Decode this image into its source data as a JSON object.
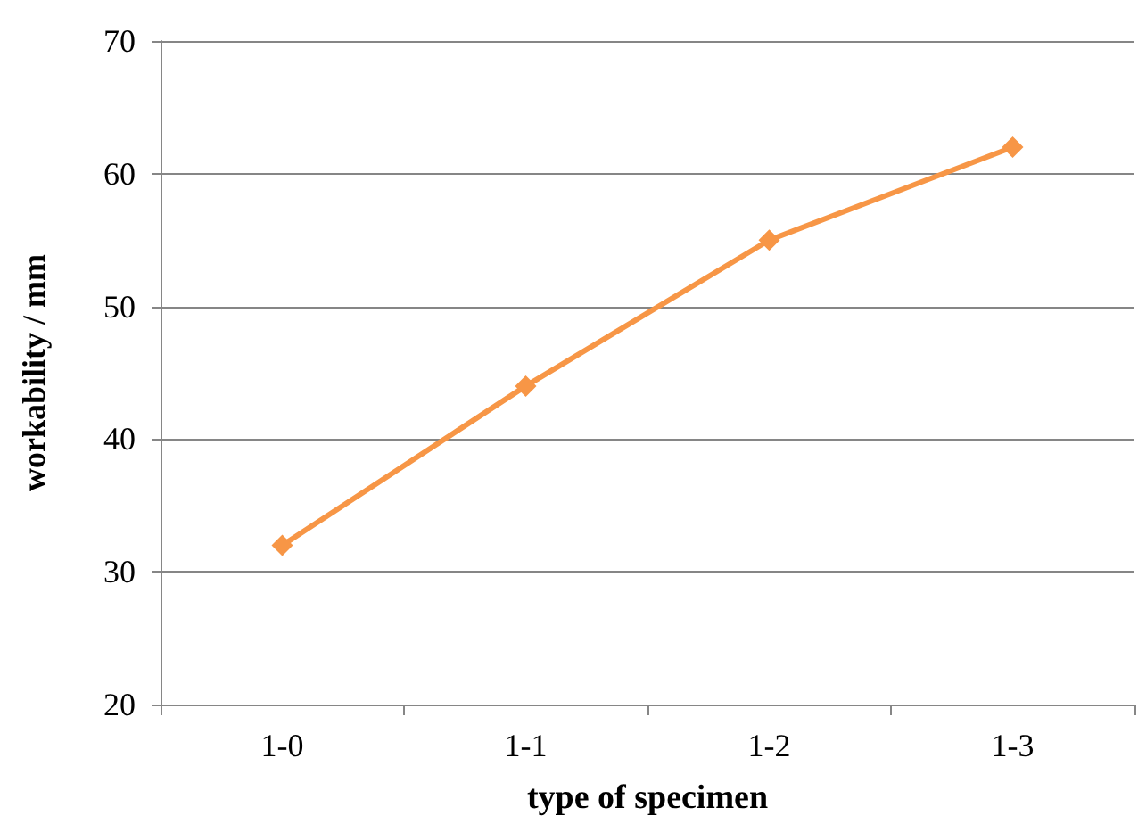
{
  "chart_data": {
    "type": "line",
    "xlabel": "type of specimen",
    "ylabel": "workability / mm",
    "categories": [
      "1-0",
      "1-1",
      "1-2",
      "1-3"
    ],
    "values": [
      32,
      44,
      55,
      62
    ],
    "color": "#f79646",
    "ylim": [
      20,
      70
    ],
    "yticks": [
      20,
      30,
      40,
      50,
      60,
      70
    ],
    "grid": "y",
    "marker": "diamond",
    "line_style": "solid"
  }
}
